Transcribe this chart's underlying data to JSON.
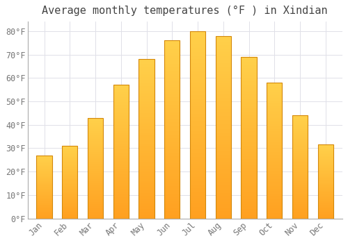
{
  "title": "Average monthly temperatures (°F ) in Xindian",
  "months": [
    "Jan",
    "Feb",
    "Mar",
    "Apr",
    "May",
    "Jun",
    "Jul",
    "Aug",
    "Sep",
    "Oct",
    "Nov",
    "Dec"
  ],
  "values": [
    27,
    31,
    43,
    57,
    68,
    76,
    80,
    78,
    69,
    58,
    44,
    31.5
  ],
  "bar_color_top": "#FFD04A",
  "bar_color_bottom": "#FFA020",
  "bar_edge_color": "#D4880A",
  "background_color": "#FFFFFF",
  "grid_color": "#E0E0E8",
  "ylim": [
    0,
    84
  ],
  "yticks": [
    0,
    10,
    20,
    30,
    40,
    50,
    60,
    70,
    80
  ],
  "ytick_labels": [
    "0°F",
    "10°F",
    "20°F",
    "30°F",
    "40°F",
    "50°F",
    "60°F",
    "70°F",
    "80°F"
  ],
  "title_fontsize": 11,
  "tick_fontsize": 8.5,
  "title_color": "#444444",
  "tick_color": "#777777",
  "bar_width": 0.6,
  "gradient_steps": 100
}
